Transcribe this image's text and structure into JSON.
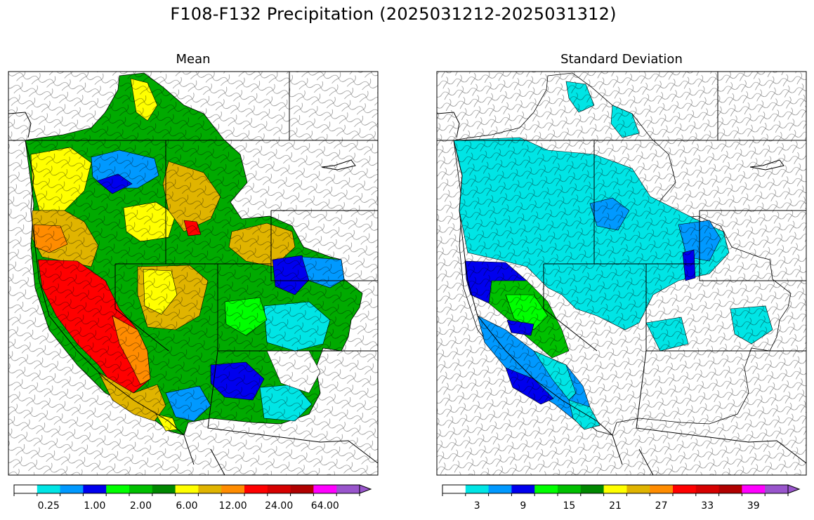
{
  "figure": {
    "title": "F108-F132 Precipitation (2025031212-2025031312)"
  },
  "chart_data": [
    {
      "type": "heatmap",
      "title": "Mean",
      "colorbar": {
        "bins": [
          "#ffffff",
          "#00e5e5",
          "#0099ff",
          "#0000ee",
          "#00ff00",
          "#00c000",
          "#008800",
          "#ffff00",
          "#e0b400",
          "#ff8c00",
          "#ff0000",
          "#d60000",
          "#b00000",
          "#ff00ff",
          "#9955cc"
        ],
        "tick_labels": [
          "0.25",
          "1.00",
          "2.00",
          "6.00",
          "12.00",
          "24.00",
          "64.00"
        ],
        "label_bin_index": [
          1,
          3,
          5,
          7,
          9,
          11,
          13
        ],
        "extend": "max"
      }
    },
    {
      "type": "heatmap",
      "title": "Standard Deviation",
      "colorbar": {
        "bins": [
          "#ffffff",
          "#00e5e5",
          "#0099ff",
          "#0000ee",
          "#00ff00",
          "#00c000",
          "#008800",
          "#ffff00",
          "#e0b400",
          "#ff8c00",
          "#ff0000",
          "#d60000",
          "#b00000",
          "#ff00ff",
          "#9955cc"
        ],
        "tick_labels": [
          "3",
          "9",
          "15",
          "21",
          "27",
          "33",
          "39"
        ],
        "label_bin_index": [
          1,
          3,
          5,
          7,
          9,
          11,
          13
        ],
        "extend": "max"
      }
    }
  ]
}
